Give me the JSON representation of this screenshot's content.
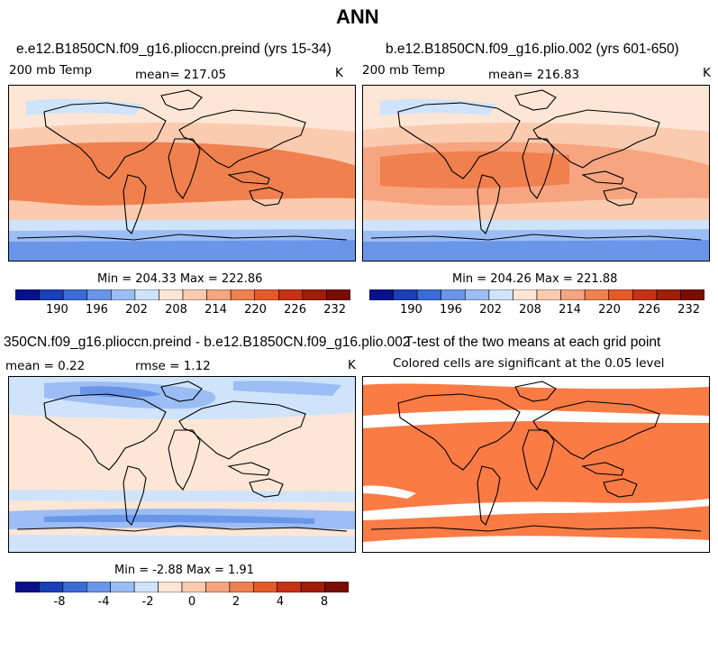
{
  "page": {
    "title": "ANN"
  },
  "panels": [
    {
      "title": "e.e12.B1850CN.f09_g16.plioccn.preind (yrs 15-34)",
      "left_label": "200 mb Temp",
      "mean_label": "mean= 217.05",
      "units": "K",
      "minmax": "Min = 204.33  Max = 222.86",
      "colorbar_ticks": [
        "190",
        "196",
        "202",
        "208",
        "214",
        "220",
        "226",
        "232"
      ]
    },
    {
      "title": "b.e12.B1850CN.f09_g16.plio.002 (yrs 601-650)",
      "left_label": "200 mb Temp",
      "mean_label": "mean= 216.83",
      "units": "K",
      "minmax": "Min = 204.26  Max = 221.88",
      "colorbar_ticks": [
        "190",
        "196",
        "202",
        "208",
        "214",
        "220",
        "226",
        "232"
      ]
    },
    {
      "title": "350CN.f09_g16.plioccn.preind - b.e12.B1850CN.f09_g16.plio.002",
      "left_label": "mean =    0.22",
      "mean_label": "rmse =    1.12",
      "units": "K",
      "minmax": "Min =  -2.88  Max =    1.91",
      "colorbar_ticks": [
        "-8",
        "-4",
        "-2",
        "0",
        "2",
        "4",
        "8"
      ]
    },
    {
      "title": "T-test of the two means at each grid point",
      "subtitle": "Colored cells are significant at the 0.05 level"
    }
  ],
  "colors": {
    "abs_scale": [
      "#08108c",
      "#1b3fb8",
      "#3a6bd8",
      "#6a96ea",
      "#9bbdf4",
      "#cfe3fb",
      "#fde6d6",
      "#fbcbb0",
      "#f6a580",
      "#f0804e",
      "#e65a28",
      "#c73212",
      "#a01d08",
      "#7a0c02"
    ],
    "diff_scale": [
      "#08108c",
      "#1b3fb8",
      "#3a6bd8",
      "#6a96ea",
      "#9bbdf4",
      "#cfe3fb",
      "#fde6d6",
      "#fbcbb0",
      "#f6a580",
      "#f0804e",
      "#e65a28",
      "#c73212",
      "#a01d08",
      "#7a0c02"
    ],
    "significant": "#fb7b45"
  }
}
